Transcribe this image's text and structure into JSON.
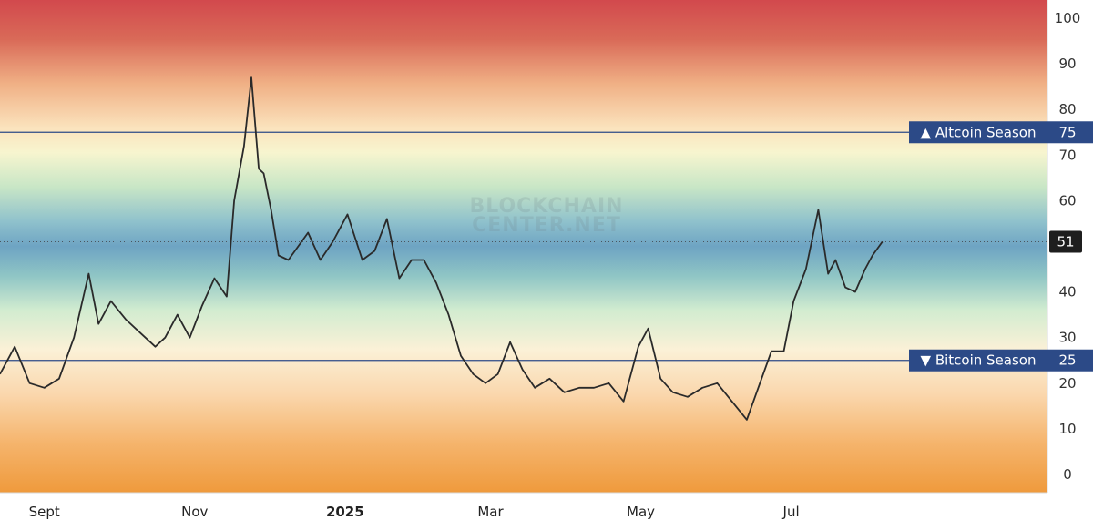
{
  "chart_data": {
    "type": "line",
    "watermark_lines": [
      "BLOCKCHAIN",
      "CENTER.NET"
    ],
    "ylim": [
      -4,
      104
    ],
    "y_ticks": [
      0,
      10,
      20,
      30,
      40,
      50,
      60,
      70,
      80,
      90,
      100
    ],
    "x_ticks": [
      {
        "label": "Sept",
        "date": "2024-09-01",
        "bold": false
      },
      {
        "label": "Nov",
        "date": "2024-11-01",
        "bold": false
      },
      {
        "label": "2025",
        "date": "2025-01-01",
        "bold": true
      },
      {
        "label": "Mar",
        "date": "2025-03-01",
        "bold": false
      },
      {
        "label": "May",
        "date": "2025-05-01",
        "bold": false
      },
      {
        "label": "Jul",
        "date": "2025-07-01",
        "bold": false
      }
    ],
    "xlim": [
      "2024-08-14",
      "2025-10-13"
    ],
    "reference_lines": [
      {
        "label": "▲ Altcoin Season",
        "value": 75,
        "value_label": "75",
        "color": "#2c4a87"
      },
      {
        "label": "▼ Bitcoin Season",
        "value": 25,
        "value_label": "25",
        "color": "#2c4a87"
      }
    ],
    "current_value": {
      "value": 51,
      "label": "51",
      "color": "#1e1e1e"
    },
    "line_color": "#2a2a2a",
    "series": [
      {
        "x": [
          "2024-08-14",
          "2024-08-20",
          "2024-08-26",
          "2024-09-01",
          "2024-09-07",
          "2024-09-13",
          "2024-09-19",
          "2024-09-23",
          "2024-09-28",
          "2024-10-04",
          "2024-10-10",
          "2024-10-16",
          "2024-10-20",
          "2024-10-25",
          "2024-10-30",
          "2024-11-04",
          "2024-11-09",
          "2024-11-14",
          "2024-11-17",
          "2024-11-21",
          "2024-11-24",
          "2024-11-27",
          "2024-11-29",
          "2024-12-02",
          "2024-12-05",
          "2024-12-09",
          "2024-12-13",
          "2024-12-17",
          "2024-12-22",
          "2024-12-27",
          "2025-01-02",
          "2025-01-08",
          "2025-01-13",
          "2025-01-18",
          "2025-01-23",
          "2025-01-28",
          "2025-02-02",
          "2025-02-07",
          "2025-02-12",
          "2025-02-17",
          "2025-02-22",
          "2025-02-27",
          "2025-03-04",
          "2025-03-09",
          "2025-03-14",
          "2025-03-19",
          "2025-03-25",
          "2025-03-31",
          "2025-04-06",
          "2025-04-12",
          "2025-04-18",
          "2025-04-24",
          "2025-04-30",
          "2025-05-04",
          "2025-05-09",
          "2025-05-14",
          "2025-05-20",
          "2025-05-26",
          "2025-06-01",
          "2025-06-07",
          "2025-06-13",
          "2025-06-19",
          "2025-06-23",
          "2025-06-28",
          "2025-07-02",
          "2025-07-07",
          "2025-07-12",
          "2025-07-16",
          "2025-07-19",
          "2025-07-23",
          "2025-07-27",
          "2025-07-31",
          "2025-08-03",
          "2025-08-07"
        ],
        "y": [
          22,
          28,
          20,
          19,
          21,
          30,
          44,
          33,
          38,
          34,
          31,
          28,
          30,
          35,
          30,
          37,
          43,
          39,
          60,
          72,
          87,
          67,
          66,
          58,
          48,
          47,
          50,
          53,
          47,
          51,
          57,
          47,
          49,
          56,
          43,
          47,
          47,
          42,
          35,
          26,
          22,
          20,
          22,
          29,
          23,
          19,
          21,
          18,
          19,
          19,
          20,
          16,
          28,
          32,
          21,
          18,
          17,
          19,
          20,
          16,
          12,
          21,
          27,
          27,
          38,
          45,
          58,
          44,
          47,
          41,
          40,
          45,
          48,
          51
        ]
      }
    ]
  }
}
